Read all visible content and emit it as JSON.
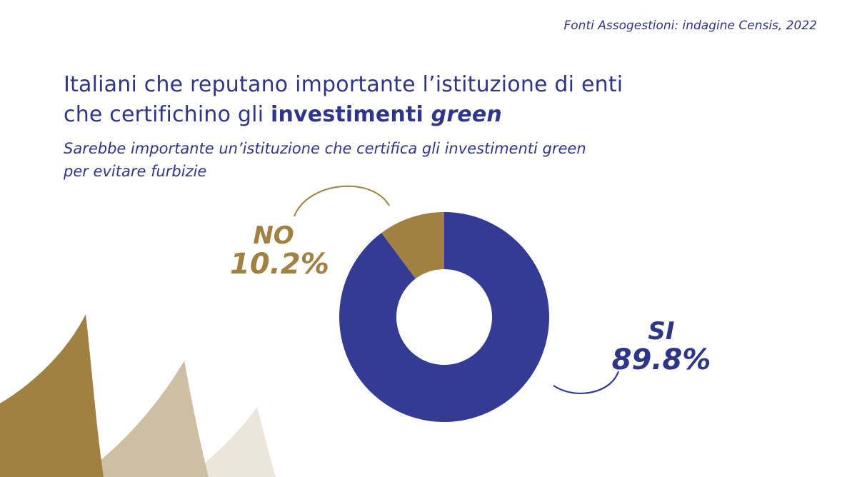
{
  "source": "Fonti Assogestioni: indagine Censis, 2022",
  "title": {
    "line1": "Italiani che reputano importante l’istituzione di enti",
    "line2_prefix": "che certifichino gli ",
    "line2_bold": "investimenti ",
    "line2_italic": "green"
  },
  "subtitle": {
    "line1": "Sarebbe importante un’istituzione che certifica gli investimenti green",
    "line2": "per evitare furbizie"
  },
  "colors": {
    "navy": "#343b95",
    "gold": "#a08142",
    "gold_light": "#cdbfa3",
    "gold_lighter": "#ebe5da"
  },
  "chart_data": {
    "type": "pie",
    "variant": "donut",
    "slices": [
      {
        "label": "SI",
        "value": 89.8,
        "display": "89.8%",
        "color": "#343b95"
      },
      {
        "label": "NO",
        "value": 10.2,
        "display": "10.2%",
        "color": "#a08142"
      }
    ]
  }
}
